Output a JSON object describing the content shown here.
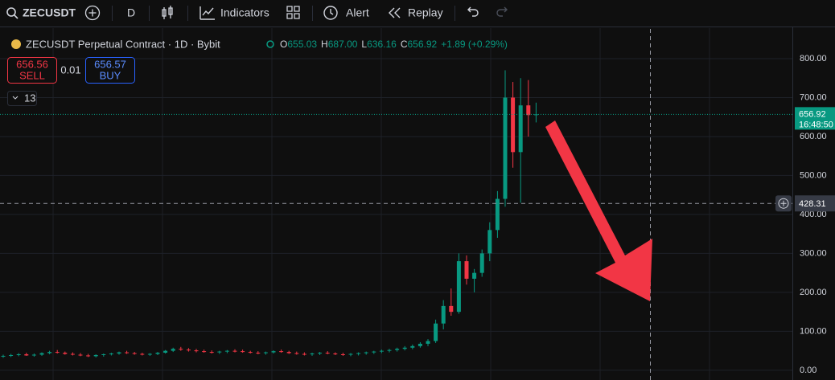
{
  "toolbar": {
    "symbol": "ZECUSDT",
    "interval": "D",
    "indicators": "Indicators",
    "alert": "Alert",
    "replay": "Replay"
  },
  "legend": {
    "title": "ZECUSDT Perpetual Contract · 1D · Bybit",
    "o_label": "O",
    "o": "655.03",
    "h_label": "H",
    "h": "687.00",
    "l_label": "L",
    "l": "636.16",
    "c_label": "C",
    "c": "656.92",
    "change": "+1.89 (+0.29%)"
  },
  "trade": {
    "sell_price": "656.56",
    "sell": "SELL",
    "quantity": "0.01",
    "buy_price": "656.57",
    "buy": "BUY",
    "indicator_count": "13"
  },
  "chart_data": {
    "type": "candlestick",
    "up_color": "#089981",
    "down_color": "#f23645",
    "ylim": [
      -25,
      868
    ],
    "yticks": [
      {
        "value": 0,
        "label": "0.00"
      },
      {
        "value": 100,
        "label": "100.00"
      },
      {
        "value": 200,
        "label": "200.00"
      },
      {
        "value": 300,
        "label": "300.00"
      },
      {
        "value": 400,
        "label": "400.00"
      },
      {
        "value": 500,
        "label": "500.00"
      },
      {
        "value": 600,
        "label": "600.00"
      },
      {
        "value": 700,
        "label": "700.00"
      },
      {
        "value": 800,
        "label": "800.00"
      }
    ],
    "grid": true,
    "last_price": {
      "value": 656.92,
      "label": "656.92"
    },
    "countdown": "16:48:50",
    "crosshair": {
      "value": 428.31,
      "label": "428.31"
    },
    "ohlc": [
      [
        35,
        40,
        32,
        37
      ],
      [
        37,
        42,
        34,
        39
      ],
      [
        39,
        44,
        36,
        41
      ],
      [
        41,
        45,
        37,
        38
      ],
      [
        38,
        43,
        35,
        40
      ],
      [
        40,
        46,
        37,
        44
      ],
      [
        44,
        50,
        41,
        47
      ],
      [
        47,
        52,
        43,
        45
      ],
      [
        45,
        48,
        40,
        42
      ],
      [
        42,
        46,
        38,
        40
      ],
      [
        40,
        44,
        36,
        38
      ],
      [
        38,
        42,
        34,
        36
      ],
      [
        36,
        41,
        33,
        39
      ],
      [
        39,
        43,
        35,
        41
      ],
      [
        41,
        45,
        38,
        43
      ],
      [
        43,
        48,
        40,
        46
      ],
      [
        46,
        50,
        42,
        44
      ],
      [
        44,
        47,
        40,
        42
      ],
      [
        42,
        45,
        38,
        40
      ],
      [
        40,
        44,
        37,
        42
      ],
      [
        42,
        47,
        39,
        45
      ],
      [
        45,
        52,
        43,
        50
      ],
      [
        50,
        58,
        47,
        55
      ],
      [
        55,
        60,
        50,
        53
      ],
      [
        53,
        57,
        48,
        51
      ],
      [
        51,
        55,
        46,
        49
      ],
      [
        49,
        53,
        45,
        47
      ],
      [
        47,
        51,
        43,
        46
      ],
      [
        46,
        50,
        42,
        48
      ],
      [
        48,
        52,
        44,
        50
      ],
      [
        50,
        54,
        46,
        49
      ],
      [
        49,
        53,
        45,
        47
      ],
      [
        47,
        50,
        43,
        45
      ],
      [
        45,
        49,
        41,
        44
      ],
      [
        44,
        48,
        40,
        46
      ],
      [
        46,
        51,
        43,
        49
      ],
      [
        49,
        53,
        45,
        47
      ],
      [
        47,
        50,
        42,
        44
      ],
      [
        44,
        48,
        40,
        42
      ],
      [
        42,
        46,
        38,
        41
      ],
      [
        41,
        45,
        37,
        43
      ],
      [
        43,
        47,
        39,
        45
      ],
      [
        45,
        49,
        41,
        43
      ],
      [
        43,
        46,
        39,
        41
      ],
      [
        41,
        45,
        37,
        40
      ],
      [
        40,
        44,
        36,
        42
      ],
      [
        42,
        46,
        38,
        44
      ],
      [
        44,
        48,
        40,
        46
      ],
      [
        46,
        50,
        42,
        48
      ],
      [
        48,
        53,
        44,
        50
      ],
      [
        50,
        55,
        46,
        52
      ],
      [
        52,
        58,
        48,
        55
      ],
      [
        55,
        62,
        51,
        58
      ],
      [
        58,
        66,
        54,
        62
      ],
      [
        62,
        72,
        58,
        68
      ],
      [
        68,
        80,
        62,
        75
      ],
      [
        75,
        130,
        70,
        120
      ],
      [
        120,
        180,
        105,
        165
      ],
      [
        165,
        210,
        140,
        150
      ],
      [
        150,
        300,
        145,
        280
      ],
      [
        280,
        295,
        220,
        235
      ],
      [
        235,
        260,
        200,
        250
      ],
      [
        250,
        310,
        240,
        300
      ],
      [
        300,
        380,
        280,
        360
      ],
      [
        360,
        460,
        340,
        440
      ],
      [
        440,
        770,
        420,
        700
      ],
      [
        700,
        740,
        520,
        560
      ],
      [
        560,
        750,
        430,
        680
      ],
      [
        680,
        745,
        600,
        655
      ],
      [
        655.03,
        687,
        636.16,
        656.92
      ]
    ]
  }
}
